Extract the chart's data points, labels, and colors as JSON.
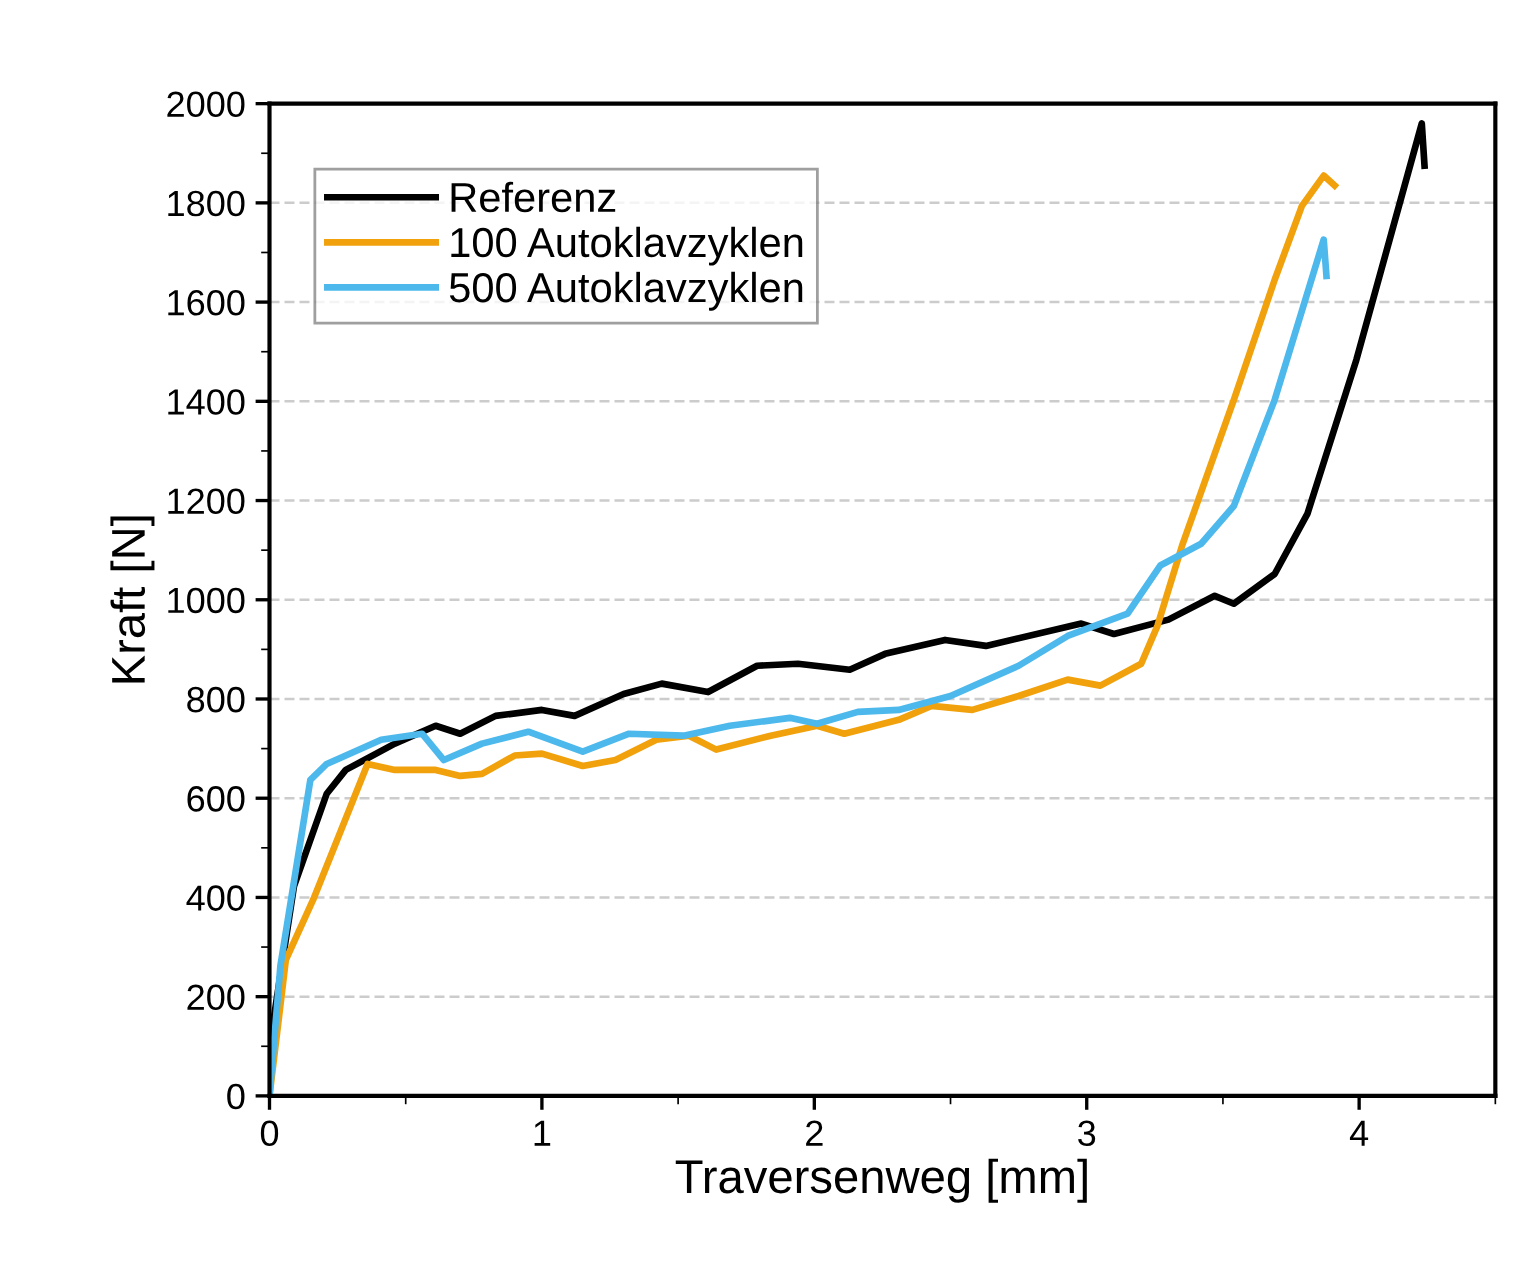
{
  "chart_data": {
    "type": "line",
    "xlabel": "Traversenweg [mm]",
    "ylabel": "Kraft [N]",
    "xlim": [
      0,
      4.5
    ],
    "xticks": [
      0,
      1,
      2,
      3,
      4
    ],
    "ylim": [
      0,
      2000
    ],
    "yticks": [
      0,
      200,
      400,
      600,
      800,
      1000,
      1200,
      1400,
      1600,
      1800,
      2000
    ],
    "grid": "y",
    "legend": "top left",
    "line_style": "solid",
    "series": [
      {
        "name": "Referenz",
        "color": "#000000",
        "x": [
          0,
          0.09,
          0.21,
          0.28,
          0.46,
          0.61,
          0.7,
          0.83,
          1.0,
          1.12,
          1.3,
          1.44,
          1.61,
          1.79,
          1.94,
          2.13,
          2.26,
          2.48,
          2.63,
          2.98,
          3.1,
          3.3,
          3.47,
          3.54,
          3.69,
          3.81,
          3.99,
          4.23,
          4.24
        ],
        "values": [
          100,
          423,
          609,
          657,
          710,
          746,
          730,
          766,
          778,
          766,
          810,
          831,
          814,
          867,
          871,
          859,
          891,
          919,
          907,
          952,
          931,
          960,
          1008,
          992,
          1052,
          1173,
          1484,
          1960,
          1875
        ]
      },
      {
        "name": "100 Autoklavzyklen",
        "color": "#f0a10c",
        "x": [
          0,
          0.06,
          0.16,
          0.36,
          0.46,
          0.61,
          0.7,
          0.78,
          0.9,
          1.0,
          1.15,
          1.27,
          1.42,
          1.54,
          1.64,
          1.84,
          2.01,
          2.11,
          2.31,
          2.43,
          2.58,
          2.75,
          2.93,
          3.05,
          3.2,
          3.26,
          3.35,
          3.54,
          3.69,
          3.79,
          3.87,
          3.91
        ],
        "values": [
          0,
          274,
          395,
          669,
          657,
          657,
          645,
          649,
          686,
          690,
          665,
          677,
          718,
          726,
          698,
          726,
          746,
          730,
          758,
          786,
          778,
          806,
          839,
          827,
          871,
          948,
          1109,
          1403,
          1645,
          1794,
          1855,
          1835
        ]
      },
      {
        "name": "500 Autoklavzyklen",
        "color": "#4db8ec",
        "x": [
          0,
          0.04,
          0.15,
          0.21,
          0.41,
          0.56,
          0.64,
          0.78,
          0.95,
          1.15,
          1.32,
          1.52,
          1.69,
          1.91,
          2.01,
          2.16,
          2.31,
          2.5,
          2.75,
          2.93,
          3.15,
          3.27,
          3.42,
          3.54,
          3.69,
          3.87,
          3.88
        ],
        "values": [
          0,
          262,
          637,
          669,
          718,
          730,
          677,
          710,
          734,
          694,
          730,
          726,
          746,
          762,
          750,
          774,
          778,
          806,
          867,
          927,
          972,
          1069,
          1113,
          1189,
          1403,
          1726,
          1653
        ]
      }
    ]
  }
}
